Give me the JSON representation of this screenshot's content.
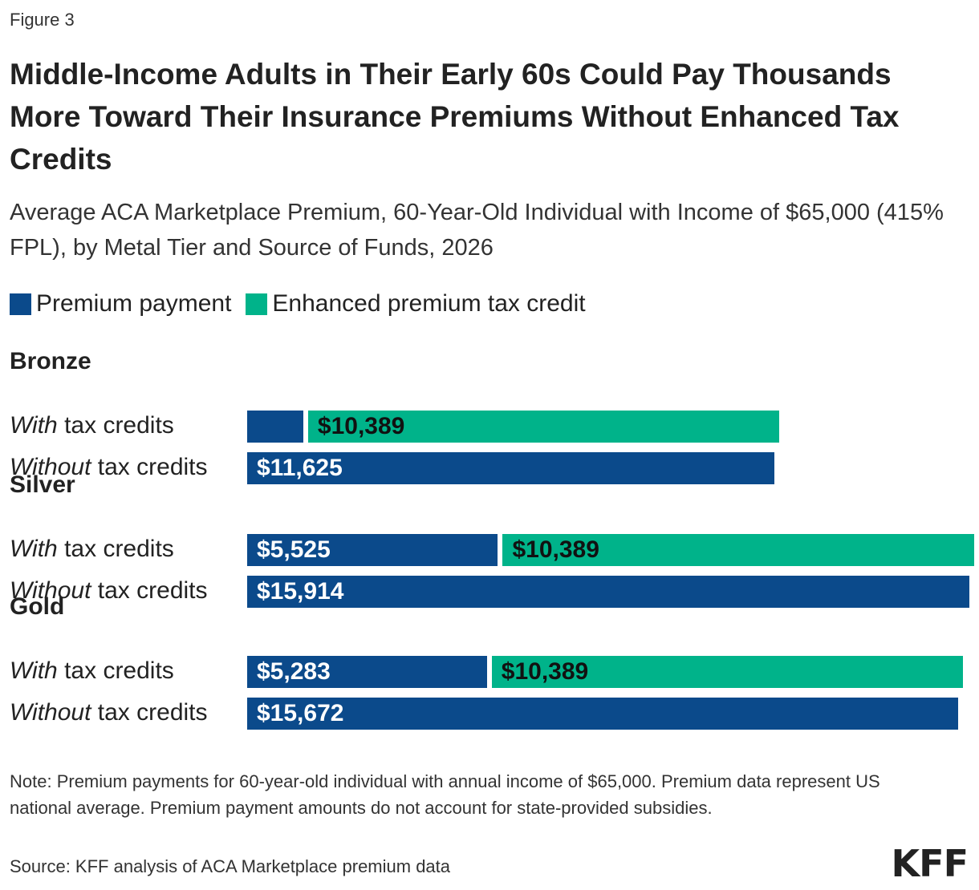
{
  "figure_label": "Figure 3",
  "title": "Middle-Income Adults in Their Early 60s Could Pay Thousands More Toward Their Insurance Premiums Without Enhanced Tax Credits",
  "subtitle": "Average ACA Marketplace Premium, 60-Year-Old Individual with Income of $65,000 (415% FPL), by Metal Tier and Source of Funds, 2026",
  "colors": {
    "premium_payment": "#0b4a8b",
    "enhanced_credit": "#00b38a"
  },
  "legend": [
    {
      "name": "Premium payment",
      "color": "#0b4a8b"
    },
    {
      "name": "Enhanced premium tax credit",
      "color": "#00b38a"
    }
  ],
  "chart_data": {
    "type": "bar",
    "orientation": "horizontal",
    "stacked": true,
    "groups": [
      {
        "name": "Bronze",
        "rows": [
          {
            "label_italic": "With",
            "label_rest": " tax credits",
            "premium": 1236,
            "premium_label": "",
            "credit": 10389,
            "credit_label": "$10,389"
          },
          {
            "label_italic": "Without",
            "label_rest": " tax credits",
            "premium": 11625,
            "premium_label": "$11,625",
            "credit": 0,
            "credit_label": ""
          }
        ]
      },
      {
        "name": "Silver",
        "rows": [
          {
            "label_italic": "With",
            "label_rest": " tax credits",
            "premium": 5525,
            "premium_label": "$5,525",
            "credit": 10389,
            "credit_label": "$10,389"
          },
          {
            "label_italic": "Without",
            "label_rest": " tax credits",
            "premium": 15914,
            "premium_label": "$15,914",
            "credit": 0,
            "credit_label": ""
          }
        ]
      },
      {
        "name": "Gold",
        "rows": [
          {
            "label_italic": "With",
            "label_rest": " tax credits",
            "premium": 5283,
            "premium_label": "$5,283",
            "credit": 10389,
            "credit_label": "$10,389"
          },
          {
            "label_italic": "Without",
            "label_rest": " tax credits",
            "premium": 15672,
            "premium_label": "$15,672",
            "credit": 0,
            "credit_label": ""
          }
        ]
      }
    ],
    "series": [
      {
        "name": "Premium payment"
      },
      {
        "name": "Enhanced premium tax credit"
      }
    ],
    "xlim": [
      0,
      16000
    ],
    "grid": false,
    "legend_position": "top-left"
  },
  "note": "Note: Premium payments for 60-year-old individual with annual income of $65,000. Premium data represent US national average. Premium payment amounts do not account for state-provided subsidies.",
  "source": "Source: KFF analysis of ACA Marketplace premium data",
  "logo": "KFF"
}
